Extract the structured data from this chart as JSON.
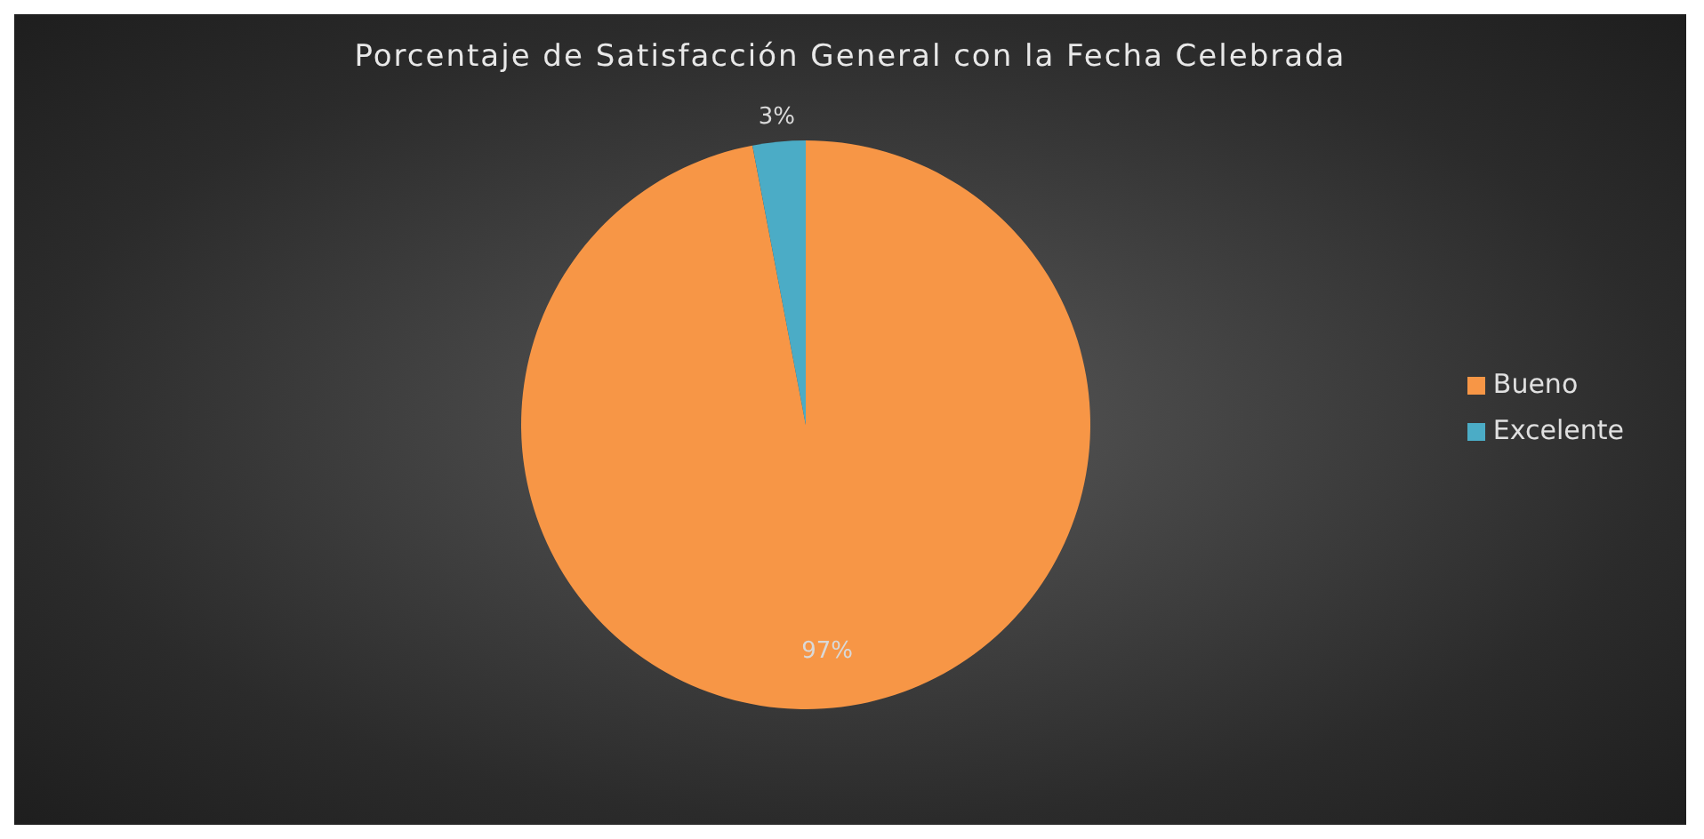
{
  "chart_data": {
    "type": "pie",
    "title": "Porcentaje de Satisfacción  General con la Fecha Celebrada",
    "categories": [
      "Bueno",
      "Excelente"
    ],
    "values": [
      97,
      3
    ],
    "value_labels": [
      "97%",
      "3%"
    ],
    "colors": [
      "#f79646",
      "#4bacc6"
    ],
    "legend": "right"
  }
}
